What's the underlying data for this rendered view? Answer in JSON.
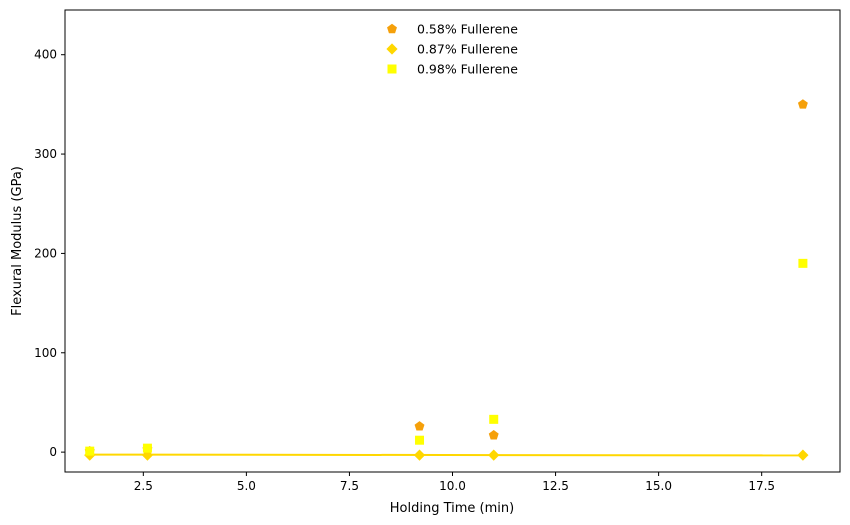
{
  "chart_data": {
    "type": "scatter",
    "title": "",
    "xlabel": "Holding Time (min)",
    "ylabel": "Flexural Modulus (GPa)",
    "xlim": [
      0.6,
      19.4
    ],
    "ylim": [
      -20,
      445
    ],
    "x_ticks": [
      2.5,
      5.0,
      7.5,
      10.0,
      12.5,
      15.0,
      17.5
    ],
    "x_tick_labels": [
      "2.5",
      "5.0",
      "7.5",
      "10.0",
      "12.5",
      "15.0",
      "17.5"
    ],
    "y_ticks": [
      0,
      100,
      200,
      300,
      400
    ],
    "y_tick_labels": [
      "0",
      "100",
      "200",
      "300",
      "400"
    ],
    "grid": false,
    "legend_position": "top-center",
    "series": [
      {
        "name": "0.58% Fullerene",
        "marker": "pentagon",
        "color": "#f5a00a",
        "points": [
          [
            1.2,
            1
          ],
          [
            2.6,
            3
          ],
          [
            9.2,
            26
          ],
          [
            11.0,
            17
          ],
          [
            18.5,
            350
          ]
        ]
      },
      {
        "name": "0.87% Fullerene",
        "marker": "diamond",
        "color": "#ffd700",
        "points": [
          [
            1.2,
            -3
          ],
          [
            2.6,
            -3
          ],
          [
            9.2,
            -3
          ],
          [
            11.0,
            -3
          ],
          [
            18.5,
            -3
          ]
        ]
      },
      {
        "name": "0.98% Fullerene",
        "marker": "square",
        "color": "#ffff00",
        "points": [
          [
            1.2,
            1
          ],
          [
            2.6,
            4
          ],
          [
            9.2,
            12
          ],
          [
            11.0,
            33
          ],
          [
            18.5,
            190
          ]
        ]
      }
    ],
    "fit_line": {
      "color": "#ffd700",
      "points": [
        [
          1.2,
          -2.5
        ],
        [
          18.5,
          -3.3
        ]
      ]
    }
  }
}
